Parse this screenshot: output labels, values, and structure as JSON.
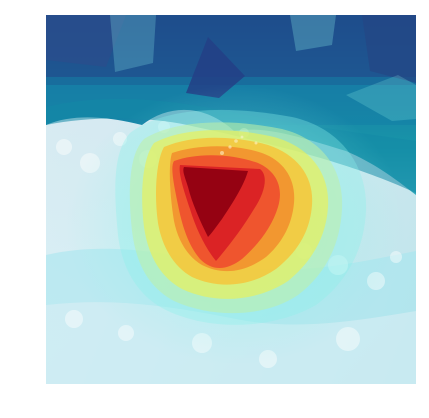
{
  "image": {
    "subject": "ocean-wave",
    "overlay": "saliency-heatmap",
    "colormap": "jet",
    "colors": {
      "deep_ocean": "#0b5f86",
      "mid_ocean": "#138fa8",
      "ocean_light": "#1fa7bc",
      "foam": "#cfe7f2",
      "foam_bright": "#eef6fb",
      "sand_shallow": "#8fd8e4",
      "heat_low": "#8bf1ea",
      "heat_mid_low": "#bff0a6",
      "heat_mid": "#e9f05a",
      "heat_mid_high": "#f7c236",
      "heat_high": "#ef4b2e",
      "heat_peak": "#8f0010",
      "cold_region": "#23498a"
    }
  }
}
